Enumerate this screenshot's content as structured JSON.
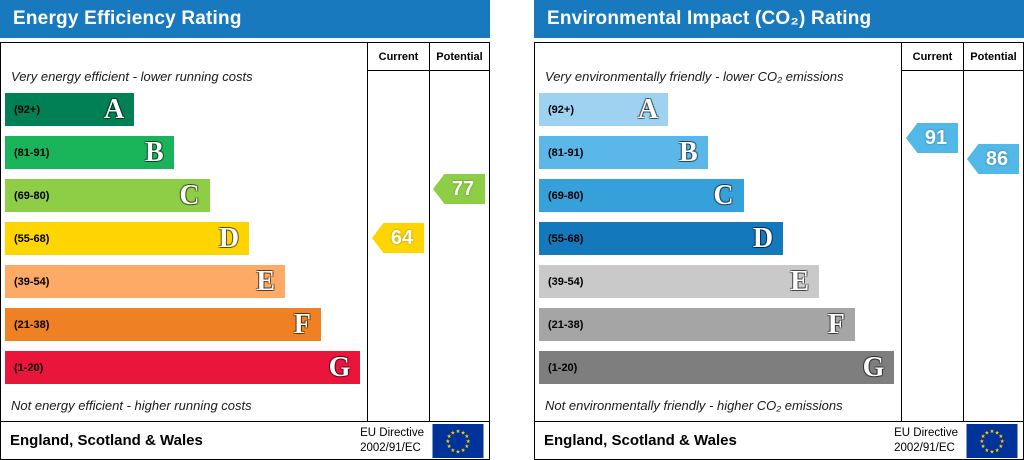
{
  "colors": {
    "header_bg": "#1879bf",
    "header_text": "#ffffff",
    "eu_flag_blue": "#003399",
    "eu_flag_star": "#ffcc00"
  },
  "chart_data": [
    {
      "type": "bar",
      "title": "Energy Efficiency Rating",
      "categories": [
        "A",
        "B",
        "C",
        "D",
        "E",
        "F",
        "G"
      ],
      "band_ranges": [
        "92+",
        "81-91",
        "69-80",
        "55-68",
        "39-54",
        "21-38",
        "1-20"
      ],
      "band_colors": [
        "#008054",
        "#19b459",
        "#8dce46",
        "#ffd500",
        "#fcaa65",
        "#ef8023",
        "#e9153b"
      ],
      "scale": [
        1,
        100
      ],
      "current": 64,
      "current_band": "D",
      "potential": 77,
      "potential_band": "C",
      "top_note": "Very energy efficient - lower running costs",
      "bottom_note": "Not energy efficient - higher running costs",
      "region": "England, Scotland & Wales",
      "directive": "EU Directive 2002/91/EC"
    },
    {
      "type": "bar",
      "title": "Environmental Impact (CO₂) Rating",
      "categories": [
        "A",
        "B",
        "C",
        "D",
        "E",
        "F",
        "G"
      ],
      "band_ranges": [
        "92+",
        "81-91",
        "69-80",
        "55-68",
        "39-54",
        "21-38",
        "1-20"
      ],
      "band_colors": [
        "#9ed2f0",
        "#5bb7e8",
        "#36a0da",
        "#1479bc",
        "#c9c9c9",
        "#a5a5a5",
        "#7e7e7e"
      ],
      "scale": [
        1,
        100
      ],
      "current": 91,
      "current_band": "B",
      "potential": 86,
      "potential_band": "B",
      "top_note": "Very environmentally friendly - lower CO₂ emissions",
      "bottom_note": "Not environmentally friendly - higher CO₂ emissions",
      "region": "England, Scotland & Wales",
      "directive": "EU Directive 2002/91/EC"
    }
  ],
  "panels": {
    "left": {
      "title": "Energy Efficiency Rating",
      "columns": {
        "current": "Current",
        "potential": "Potential"
      },
      "top_note": "Very energy efficient - lower running costs",
      "bottom_note": "Not energy efficient - higher running costs",
      "bands": [
        {
          "range": "(92+)",
          "letter": "A",
          "color": "#008054",
          "width_pct": 36
        },
        {
          "range": "(81-91)",
          "letter": "B",
          "color": "#19b459",
          "width_pct": 47
        },
        {
          "range": "(69-80)",
          "letter": "C",
          "color": "#8dce46",
          "width_pct": 57
        },
        {
          "range": "(55-68)",
          "letter": "D",
          "color": "#ffd500",
          "width_pct": 68
        },
        {
          "range": "(39-54)",
          "letter": "E",
          "color": "#fcaa65",
          "width_pct": 78
        },
        {
          "range": "(21-38)",
          "letter": "F",
          "color": "#ef8023",
          "width_pct": 88
        },
        {
          "range": "(1-20)",
          "letter": "G",
          "color": "#e9153b",
          "width_pct": 99
        }
      ],
      "current": {
        "value": "64",
        "color": "#ffd500"
      },
      "potential": {
        "value": "77",
        "color": "#8dce46"
      },
      "footer": {
        "region": "England, Scotland & Wales",
        "directive_line1": "EU Directive",
        "directive_line2": "2002/91/EC"
      }
    },
    "right": {
      "title": "Environmental Impact (CO₂) Rating",
      "columns": {
        "current": "Current",
        "potential": "Potential"
      },
      "top_note": "Very environmentally friendly - lower CO₂ emissions",
      "bottom_note": "Not environmentally friendly - higher CO₂ emissions",
      "bands": [
        {
          "range": "(92+)",
          "letter": "A",
          "color": "#9ed2f0",
          "width_pct": 36
        },
        {
          "range": "(81-91)",
          "letter": "B",
          "color": "#5bb7e8",
          "width_pct": 47
        },
        {
          "range": "(69-80)",
          "letter": "C",
          "color": "#36a0da",
          "width_pct": 57
        },
        {
          "range": "(55-68)",
          "letter": "D",
          "color": "#1479bc",
          "width_pct": 68
        },
        {
          "range": "(39-54)",
          "letter": "E",
          "color": "#c9c9c9",
          "width_pct": 78
        },
        {
          "range": "(21-38)",
          "letter": "F",
          "color": "#a5a5a5",
          "width_pct": 88
        },
        {
          "range": "(1-20)",
          "letter": "G",
          "color": "#7e7e7e",
          "width_pct": 99
        }
      ],
      "current": {
        "value": "91",
        "color": "#52b8e8"
      },
      "potential": {
        "value": "86",
        "color": "#52b8e8"
      },
      "footer": {
        "region": "England, Scotland & Wales",
        "directive_line1": "EU Directive",
        "directive_line2": "2002/91/EC"
      }
    }
  }
}
